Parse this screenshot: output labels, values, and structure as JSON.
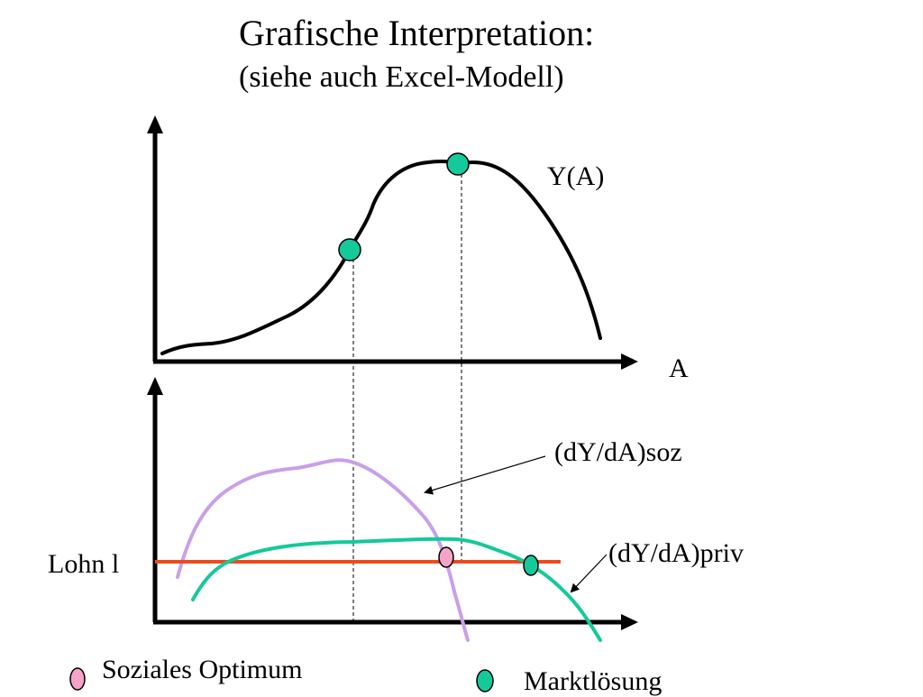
{
  "title": "Grafische Interpretation:",
  "subtitle": "(siehe auch Excel-Modell)",
  "labels": {
    "y_curve": "Y(A)",
    "x_axis": "A",
    "soz_curve": "(dY/dA)soz",
    "priv_curve": "(dY/dA)priv",
    "wage": "Lohn l"
  },
  "legend": {
    "social_optimum": "Soziales Optimum",
    "market_solution": "Marktlösung"
  },
  "colors": {
    "axis": "#000000",
    "y_curve": "#000000",
    "soz_curve": "#c9a0e8",
    "priv_curve": "#14c99a",
    "wage_line": "#f04a1c",
    "social_optimum_marker": "#f5a3c7",
    "market_solution_marker": "#14c99a"
  }
}
